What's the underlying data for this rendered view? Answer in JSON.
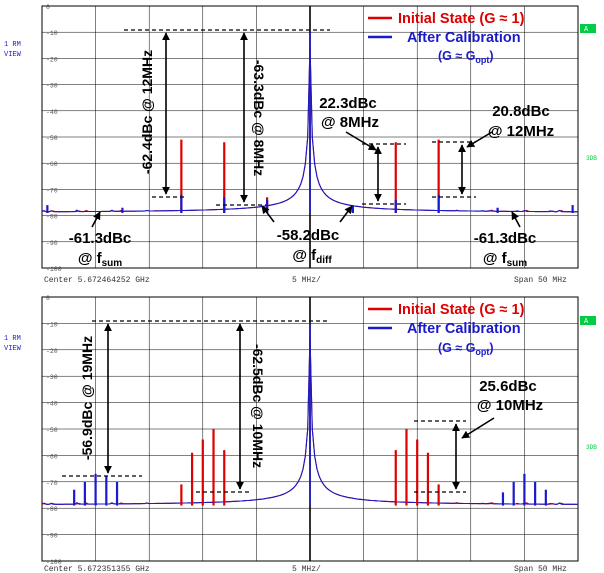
{
  "colors": {
    "initial": "#dd0000",
    "calibrated": "#1a1acc",
    "grid": "#000000",
    "side_indicator": "#00cc44"
  },
  "panels": [
    {
      "center_label": "Center  5.672464252 GHz",
      "div_label": "5 MHz/",
      "span_label": "Span  50 MHz",
      "side_left": [
        "1 RM",
        "VIEW"
      ],
      "side_right_top": "A",
      "side_right_mid": "3DB",
      "legend": [
        {
          "text": "Initial State (G ≈ 1)",
          "color_key": "initial"
        },
        {
          "text": "After Calibration",
          "color_key": "calibrated"
        },
        {
          "text": "(G ≈ G",
          "sub": "opt",
          "tail": ")",
          "color_key": "calibrated"
        }
      ],
      "annotations": {
        "vert_left": "-62.4dBc @ 12MHz",
        "vert_mid": "-63.3dBc @ 8MHz",
        "mid_right_1": "22.3dBc",
        "mid_right_2": "@ 8MHz",
        "right_1": "20.8dBc",
        "right_2": "@ 12MHz",
        "bl_1": "-61.3dBc",
        "bl_2": "@ f",
        "bl_sub": "sum",
        "bc_1": "-58.2dBc",
        "bc_2": "@ f",
        "bc_sub": "diff",
        "br_1": "-61.3dBc",
        "br_2": "@ f",
        "br_sub": "sum"
      }
    },
    {
      "center_label": "Center  5.672351355 GHz",
      "div_label": "5 MHz/",
      "span_label": "Span  50 MHz",
      "side_left": [
        "1 RM",
        "VIEW"
      ],
      "side_right_top": "A",
      "side_right_mid": "3DB",
      "legend": [
        {
          "text": "Initial State (G ≈ 1)",
          "color_key": "initial"
        },
        {
          "text": "After Calibration",
          "color_key": "calibrated"
        },
        {
          "text": "(G ≈ G",
          "sub": "opt",
          "tail": ")",
          "color_key": "calibrated"
        }
      ],
      "annotations": {
        "vert_left": "-56.9dBc @ 19MHz",
        "vert_mid": "-62.5dBc @ 10MHz",
        "right_1": "25.6dBc",
        "right_2": "@ 10MHz"
      }
    }
  ],
  "chart_data": [
    {
      "type": "line",
      "xlabel": "",
      "ylabel": "",
      "xlim": [
        -25,
        25
      ],
      "ylim": [
        -100,
        0
      ],
      "yticks": [
        "0",
        "-10",
        "-20",
        "-30",
        "-40",
        "-50",
        "-60",
        "-70",
        "-80",
        "-90",
        "-100"
      ],
      "grid": true,
      "noise_floor": -79,
      "series": [
        {
          "name": "Initial State (G ≈ 1)",
          "color_key": "initial",
          "x": [
            -12,
            -8,
            -4,
            8,
            12
          ],
          "values": [
            -51,
            -52,
            -73,
            -52,
            -51
          ]
        },
        {
          "name": "After Calibration (G ≈ Gopt)",
          "color_key": "calibrated",
          "x": [
            -24.5,
            -17.5,
            -12,
            -8,
            -4,
            0,
            4,
            8,
            12,
            17.5,
            24.5
          ],
          "values": [
            -76,
            -77,
            -72,
            -73,
            -74,
            -10,
            -76,
            -74,
            -72,
            -77,
            -76
          ]
        }
      ]
    },
    {
      "type": "line",
      "xlabel": "",
      "ylabel": "",
      "xlim": [
        -25,
        25
      ],
      "ylim": [
        -100,
        0
      ],
      "yticks": [
        "0",
        "-10",
        "-20",
        "-30",
        "-40",
        "-50",
        "-60",
        "-70",
        "-80",
        "-90",
        "-100"
      ],
      "grid": true,
      "noise_floor": -79,
      "series": [
        {
          "name": "Initial State (G ≈ 1)",
          "color_key": "initial",
          "x": [
            -12,
            -11,
            -10,
            -9,
            -8,
            8,
            9,
            10,
            11,
            12
          ],
          "values": [
            -71,
            -59,
            -54,
            -50,
            -58,
            -58,
            -50,
            -54,
            -59,
            -71
          ]
        },
        {
          "name": "After Calibration (G ≈ Gopt)",
          "color_key": "calibrated",
          "x": [
            -22,
            -21,
            -20,
            -19,
            -18,
            18,
            19,
            20,
            21,
            22
          ],
          "values": [
            -73,
            -70,
            -67,
            -68,
            -70,
            -74,
            -70,
            -67,
            -70,
            -73
          ]
        }
      ]
    }
  ]
}
